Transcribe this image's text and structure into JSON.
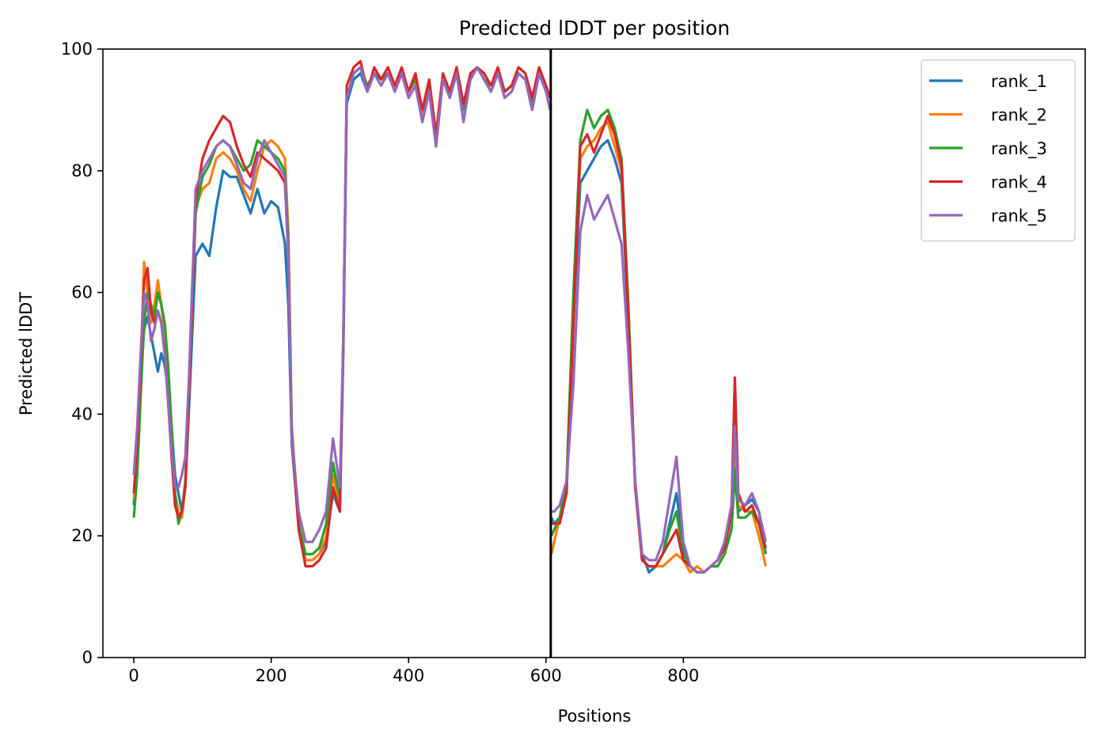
{
  "chart_data": {
    "type": "line",
    "title": "Predicted lDDT per position",
    "xlabel": "Positions",
    "ylabel": "Predicted lDDT",
    "xlim": [
      -45,
      1385
    ],
    "ylim": [
      0,
      100
    ],
    "xticks": [
      0,
      200,
      400,
      600,
      800
    ],
    "yticks": [
      0,
      20,
      40,
      60,
      80,
      100
    ],
    "grid": false,
    "legend_position": "top-right",
    "chain_break": 607,
    "series": [
      {
        "name": "rank_1",
        "color": "#1f77b4",
        "x": [
          0,
          5,
          10,
          15,
          20,
          25,
          30,
          35,
          40,
          45,
          50,
          55,
          60,
          65,
          70,
          75,
          80,
          90,
          100,
          110,
          120,
          130,
          140,
          150,
          160,
          170,
          180,
          190,
          200,
          210,
          220,
          225,
          230,
          240,
          250,
          260,
          270,
          280,
          290,
          300,
          305,
          310,
          320,
          330,
          340,
          350,
          360,
          370,
          380,
          390,
          400,
          410,
          420,
          430,
          440,
          450,
          460,
          470,
          480,
          490,
          500,
          510,
          520,
          530,
          540,
          550,
          560,
          570,
          580,
          590,
          600,
          606,
          608,
          612,
          620,
          630,
          640,
          650,
          660,
          670,
          680,
          690,
          700,
          710,
          720,
          730,
          740,
          750,
          760,
          770,
          780,
          790,
          800,
          810,
          820,
          830,
          840,
          850,
          860,
          870,
          875,
          880,
          890,
          900,
          910,
          920
        ],
        "y": [
          25,
          34,
          45,
          54,
          56,
          53,
          50,
          47,
          50,
          48,
          44,
          38,
          30,
          27,
          24,
          28,
          40,
          66,
          68,
          66,
          74,
          80,
          79,
          79,
          76,
          73,
          77,
          73,
          75,
          74,
          68,
          58,
          35,
          22,
          16,
          16,
          17,
          19,
          27,
          24,
          50,
          91,
          95,
          96,
          93,
          96,
          95,
          96,
          94,
          96,
          93,
          95,
          90,
          94,
          85,
          95,
          93,
          96,
          90,
          95,
          97,
          95,
          94,
          96,
          93,
          94,
          96,
          95,
          91,
          96,
          94,
          92,
          23,
          22,
          23,
          28,
          55,
          78,
          80,
          82,
          84,
          85,
          82,
          78,
          55,
          28,
          17,
          14,
          15,
          17,
          22,
          27,
          18,
          15,
          14,
          14,
          15,
          15,
          17,
          21,
          30,
          24,
          25,
          26,
          24,
          17
        ]
      },
      {
        "name": "rank_2",
        "color": "#ff7f0e",
        "x": [
          0,
          5,
          10,
          15,
          20,
          25,
          30,
          35,
          40,
          45,
          50,
          55,
          60,
          65,
          70,
          75,
          80,
          90,
          100,
          110,
          120,
          130,
          140,
          150,
          160,
          170,
          180,
          190,
          200,
          210,
          220,
          225,
          230,
          240,
          250,
          260,
          270,
          280,
          290,
          300,
          305,
          310,
          320,
          330,
          340,
          350,
          360,
          370,
          380,
          390,
          400,
          410,
          420,
          430,
          440,
          450,
          460,
          470,
          480,
          490,
          500,
          510,
          520,
          530,
          540,
          550,
          560,
          570,
          580,
          590,
          600,
          606,
          608,
          612,
          620,
          630,
          640,
          650,
          660,
          670,
          680,
          690,
          700,
          710,
          720,
          730,
          740,
          750,
          760,
          770,
          780,
          790,
          800,
          810,
          820,
          830,
          840,
          850,
          860,
          870,
          875,
          880,
          890,
          900,
          910,
          920
        ],
        "y": [
          26,
          34,
          48,
          65,
          60,
          55,
          58,
          62,
          58,
          53,
          45,
          36,
          27,
          24,
          23,
          28,
          42,
          74,
          77,
          78,
          82,
          83,
          82,
          80,
          77,
          75,
          80,
          84,
          85,
          84,
          82,
          70,
          38,
          22,
          16,
          16,
          17,
          20,
          30,
          25,
          52,
          92,
          96,
          97,
          94,
          96,
          94,
          96,
          93,
          96,
          92,
          94,
          89,
          93,
          84,
          95,
          92,
          96,
          90,
          95,
          97,
          95,
          93,
          96,
          92,
          93,
          96,
          95,
          90,
          96,
          94,
          92,
          17,
          19,
          23,
          29,
          58,
          82,
          84,
          85,
          87,
          88,
          84,
          80,
          57,
          28,
          16,
          15,
          15,
          15,
          16,
          17,
          16,
          14,
          15,
          14,
          15,
          16,
          18,
          22,
          33,
          25,
          24,
          24,
          20,
          15
        ]
      },
      {
        "name": "rank_3",
        "color": "#2ca02c",
        "x": [
          0,
          5,
          10,
          15,
          20,
          25,
          30,
          35,
          40,
          45,
          50,
          55,
          60,
          65,
          70,
          75,
          80,
          90,
          100,
          110,
          120,
          130,
          140,
          150,
          160,
          170,
          180,
          190,
          200,
          210,
          220,
          225,
          230,
          240,
          250,
          260,
          270,
          280,
          290,
          300,
          305,
          310,
          320,
          330,
          340,
          350,
          360,
          370,
          380,
          390,
          400,
          410,
          420,
          430,
          440,
          450,
          460,
          470,
          480,
          490,
          500,
          510,
          520,
          530,
          540,
          550,
          560,
          570,
          580,
          590,
          600,
          606,
          608,
          612,
          620,
          630,
          640,
          650,
          660,
          670,
          680,
          690,
          700,
          710,
          720,
          730,
          740,
          750,
          760,
          770,
          780,
          790,
          800,
          810,
          820,
          830,
          840,
          850,
          860,
          870,
          875,
          880,
          890,
          900,
          910,
          920
        ],
        "y": [
          23,
          30,
          43,
          55,
          60,
          58,
          56,
          60,
          58,
          55,
          48,
          38,
          27,
          22,
          24,
          29,
          41,
          73,
          79,
          81,
          84,
          85,
          84,
          82,
          80,
          81,
          85,
          84,
          83,
          82,
          80,
          68,
          37,
          22,
          17,
          17,
          18,
          22,
          32,
          26,
          51,
          92,
          96,
          97,
          94,
          96,
          95,
          96,
          94,
          96,
          93,
          95,
          90,
          94,
          85,
          95,
          93,
          96,
          90,
          95,
          97,
          95,
          94,
          96,
          93,
          94,
          96,
          95,
          91,
          96,
          94,
          92,
          20,
          21,
          23,
          29,
          60,
          85,
          90,
          87,
          89,
          90,
          87,
          82,
          58,
          28,
          16,
          15,
          15,
          17,
          21,
          24,
          17,
          15,
          14,
          14,
          15,
          15,
          17,
          21,
          31,
          23,
          23,
          24,
          22,
          17
        ]
      },
      {
        "name": "rank_4",
        "color": "#d62728",
        "x": [
          0,
          5,
          10,
          15,
          20,
          25,
          30,
          35,
          40,
          45,
          50,
          55,
          60,
          65,
          70,
          75,
          80,
          90,
          100,
          110,
          120,
          130,
          140,
          150,
          160,
          170,
          180,
          190,
          200,
          210,
          220,
          225,
          230,
          240,
          250,
          260,
          270,
          280,
          290,
          300,
          305,
          310,
          320,
          330,
          340,
          350,
          360,
          370,
          380,
          390,
          400,
          410,
          420,
          430,
          440,
          450,
          460,
          470,
          480,
          490,
          500,
          510,
          520,
          530,
          540,
          550,
          560,
          570,
          580,
          590,
          600,
          606,
          608,
          612,
          620,
          630,
          640,
          650,
          660,
          670,
          680,
          690,
          700,
          710,
          720,
          730,
          740,
          750,
          760,
          770,
          780,
          790,
          800,
          810,
          820,
          830,
          840,
          850,
          860,
          870,
          875,
          880,
          890,
          900,
          910,
          920
        ],
        "y": [
          27,
          35,
          48,
          62,
          64,
          57,
          55,
          57,
          55,
          50,
          42,
          33,
          25,
          23,
          24,
          28,
          42,
          75,
          82,
          85,
          87,
          89,
          88,
          84,
          81,
          79,
          83,
          82,
          81,
          80,
          78,
          66,
          36,
          21,
          15,
          15,
          16,
          18,
          28,
          24,
          52,
          94,
          97,
          98,
          93,
          97,
          95,
          97,
          94,
          97,
          93,
          96,
          90,
          95,
          86,
          96,
          93,
          97,
          91,
          96,
          97,
          96,
          94,
          97,
          93,
          94,
          97,
          96,
          92,
          97,
          94,
          92,
          22,
          22,
          22,
          27,
          55,
          84,
          86,
          83,
          86,
          89,
          86,
          81,
          56,
          28,
          16,
          15,
          15,
          17,
          19,
          21,
          16,
          15,
          14,
          14,
          15,
          16,
          18,
          24,
          46,
          27,
          24,
          25,
          22,
          18
        ]
      },
      {
        "name": "rank_5",
        "color": "#9467bd",
        "x": [
          0,
          5,
          10,
          15,
          20,
          25,
          30,
          35,
          40,
          45,
          50,
          55,
          60,
          65,
          70,
          75,
          80,
          90,
          100,
          110,
          120,
          130,
          140,
          150,
          160,
          170,
          180,
          190,
          200,
          210,
          220,
          225,
          230,
          240,
          250,
          260,
          270,
          280,
          290,
          300,
          305,
          310,
          320,
          330,
          340,
          350,
          360,
          370,
          380,
          390,
          400,
          410,
          420,
          430,
          440,
          450,
          460,
          470,
          480,
          490,
          500,
          510,
          520,
          530,
          540,
          550,
          560,
          570,
          580,
          590,
          600,
          606,
          608,
          612,
          620,
          630,
          640,
          650,
          660,
          670,
          680,
          690,
          700,
          710,
          720,
          730,
          740,
          750,
          760,
          770,
          780,
          790,
          800,
          810,
          820,
          830,
          840,
          850,
          860,
          870,
          875,
          880,
          890,
          900,
          910,
          920
        ],
        "y": [
          30,
          38,
          50,
          60,
          58,
          52,
          54,
          57,
          55,
          50,
          42,
          34,
          28,
          28,
          30,
          33,
          45,
          77,
          80,
          82,
          84,
          85,
          84,
          81,
          78,
          77,
          82,
          85,
          83,
          81,
          79,
          65,
          36,
          24,
          19,
          19,
          21,
          24,
          36,
          28,
          53,
          92,
          96,
          97,
          93,
          96,
          94,
          96,
          93,
          96,
          92,
          94,
          88,
          93,
          84,
          95,
          92,
          96,
          88,
          95,
          97,
          95,
          93,
          96,
          92,
          93,
          96,
          95,
          90,
          96,
          93,
          90,
          24,
          24,
          25,
          29,
          45,
          70,
          76,
          72,
          74,
          76,
          72,
          68,
          50,
          29,
          17,
          16,
          16,
          19,
          26,
          33,
          19,
          15,
          14,
          14,
          15,
          16,
          19,
          25,
          38,
          26,
          25,
          27,
          24,
          19
        ]
      }
    ]
  }
}
